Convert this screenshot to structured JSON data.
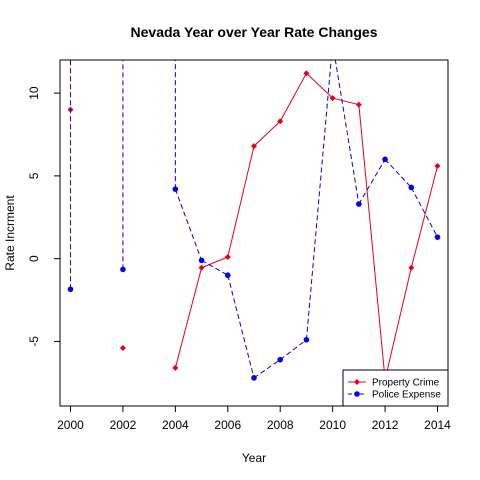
{
  "chart_data": {
    "type": "line",
    "title": "Nevada Year over Year Rate Changes",
    "xlabel": "Year",
    "ylabel": "Rate Incrment",
    "xlim": [
      1999.6,
      2014.4
    ],
    "ylim": [
      -8.9,
      12.0
    ],
    "x_ticks": [
      2000,
      2002,
      2004,
      2006,
      2008,
      2010,
      2012,
      2014
    ],
    "y_ticks": [
      -5,
      0,
      5,
      10
    ],
    "grid": false,
    "legend_position": "bottom-right",
    "series": [
      {
        "name": "Property Crime",
        "color": "#e8001c",
        "line_style": "solid",
        "marker": "diamond",
        "points": [
          {
            "x": 2000,
            "y": 9.0
          },
          {
            "x": 2002,
            "y": -5.4
          },
          {
            "x": 2004,
            "y": -6.6
          },
          {
            "x": 2005,
            "y": -0.55
          },
          {
            "x": 2006,
            "y": 0.1
          },
          {
            "x": 2007,
            "y": 6.8
          },
          {
            "x": 2008,
            "y": 8.3
          },
          {
            "x": 2009,
            "y": 11.2
          },
          {
            "x": 2010,
            "y": 9.7
          },
          {
            "x": 2011,
            "y": 9.3
          },
          {
            "x": 2012,
            "y": -7.3
          },
          {
            "x": 2013,
            "y": -0.55
          },
          {
            "x": 2014,
            "y": 5.6
          }
        ]
      },
      {
        "name": "Police Expense",
        "color": "#0000ee",
        "line_style": "dashed",
        "marker": "circle",
        "points": [
          {
            "x": 2000,
            "y": -1.85
          },
          {
            "x": 2002,
            "y": -0.65
          },
          {
            "x": 2004,
            "y": 4.2
          },
          {
            "x": 2005,
            "y": -0.1
          },
          {
            "x": 2006,
            "y": -1.0
          },
          {
            "x": 2007,
            "y": -7.2
          },
          {
            "x": 2008,
            "y": -6.1
          },
          {
            "x": 2009,
            "y": -4.9
          },
          {
            "x": 2010,
            "y": 13.0
          },
          {
            "x": 2011,
            "y": 3.3
          },
          {
            "x": 2012,
            "y": 6.0
          },
          {
            "x": 2013,
            "y": 4.3
          },
          {
            "x": 2014,
            "y": 1.3
          }
        ],
        "offscale_segments": [
          {
            "x": 2000,
            "y_from": -1.85,
            "y_to": 40
          },
          {
            "x": 2002,
            "y_from": -0.65,
            "y_to": 40
          },
          {
            "x": 2004,
            "y_from": 4.2,
            "y_to": 40
          }
        ]
      }
    ]
  }
}
